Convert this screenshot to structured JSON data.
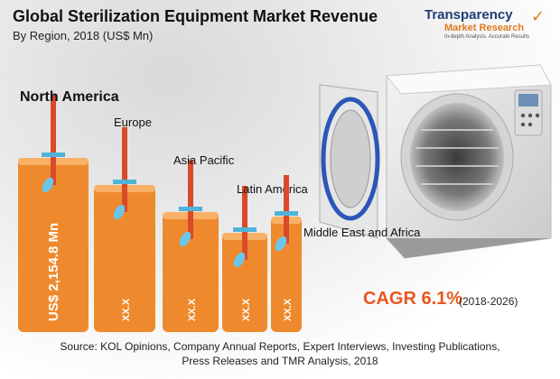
{
  "header": {
    "title": "Global Sterilization Equipment Market Revenue",
    "subtitle": "By Region, 2018 (US$ Mn)"
  },
  "logo": {
    "line1": "Transparency",
    "line2": "Market Research",
    "tagline": "In-depth Analysis. Accurate Results"
  },
  "chart_data": {
    "type": "bar",
    "title": "Global Sterilization Equipment Market Revenue",
    "subtitle": "By Region, 2018 (US$ Mn)",
    "categories": [
      "North America",
      "Europe",
      "Asia Pacific",
      "Latin America",
      "Middle East and Africa"
    ],
    "values": [
      2154.8,
      null,
      null,
      null,
      null
    ],
    "value_labels": [
      "US$ 2,154.8 Mn",
      "XX.X",
      "XX.X",
      "XX.X",
      "XX.X"
    ],
    "colors": {
      "bar": "#ee8a2d",
      "bar_top": "#f9b067",
      "accent": "#e8571e"
    }
  },
  "cagr": {
    "label": "CAGR 6.1%",
    "period": "(2018-2026)"
  },
  "source": {
    "line1": "Source: KOL Opinions, Company Annual Reports, Expert Interviews, Investing Publications,",
    "line2": "Press Releases and TMR Analysis, 2018"
  }
}
